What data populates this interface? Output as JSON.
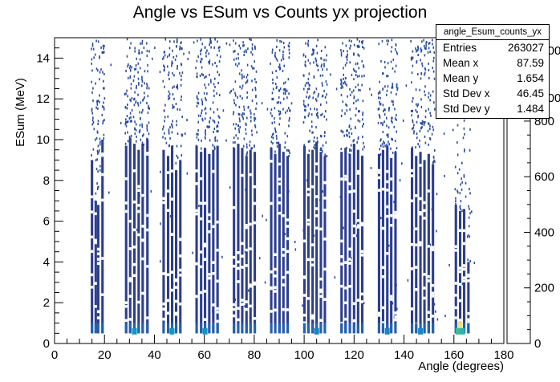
{
  "chart_data": {
    "type": "heatmap",
    "title": "Angle vs ESum vs Counts yx projection",
    "xlabel": "Angle (degrees)",
    "ylabel": "ESum (MeV)",
    "xlim": [
      0,
      180
    ],
    "ylim": [
      0,
      15
    ],
    "x_ticks": [
      "0",
      "20",
      "40",
      "60",
      "80",
      "100",
      "120",
      "140",
      "160",
      "180"
    ],
    "y_ticks": [
      "0",
      "2",
      "4",
      "6",
      "8",
      "10",
      "12",
      "14"
    ],
    "z_ticks": [
      "0",
      "200",
      "400",
      "600",
      "800",
      "1000",
      "1000"
    ],
    "z_range": [
      0,
      1100
    ],
    "palette": [
      "#2c3e8f",
      "#2a4ea0",
      "#2560b0",
      "#1f74bd",
      "#1686c4",
      "#0f97c5",
      "#0aa6c2",
      "#10b1b8",
      "#25b9a8",
      "#3ebd95",
      "#5cc082",
      "#7fc26d",
      "#a0c25c",
      "#bfbf52",
      "#d7bb4e",
      "#e8b84e"
    ],
    "bright_color": "#ede28a",
    "columns": [
      {
        "x": 15,
        "top": 9.0
      },
      {
        "x": 16.5,
        "top": 7.0
      },
      {
        "x": 17.5,
        "top": 6.8
      },
      {
        "x": 19.2,
        "top": 10.0
      },
      {
        "x": 28.7,
        "top": 9.7
      },
      {
        "x": 30.3,
        "top": 10.1
      },
      {
        "x": 32,
        "top": 9.8
      },
      {
        "x": 33.7,
        "top": 9.5
      },
      {
        "x": 35.3,
        "top": 9.8
      },
      {
        "x": 37.2,
        "top": 10.0
      },
      {
        "x": 43.7,
        "top": 9.5
      },
      {
        "x": 45.5,
        "top": 9.2
      },
      {
        "x": 47.1,
        "top": 9.7
      },
      {
        "x": 48.7,
        "top": 8.5
      },
      {
        "x": 50.4,
        "top": 9.0
      },
      {
        "x": 56.9,
        "top": 9.7
      },
      {
        "x": 58.7,
        "top": 9.4
      },
      {
        "x": 60.3,
        "top": 9.6
      },
      {
        "x": 62,
        "top": 9.3
      },
      {
        "x": 63.6,
        "top": 9.5
      },
      {
        "x": 65.3,
        "top": 9.7
      },
      {
        "x": 71.9,
        "top": 9.6
      },
      {
        "x": 73.6,
        "top": 9.8
      },
      {
        "x": 75.2,
        "top": 9.6
      },
      {
        "x": 76.9,
        "top": 9.2
      },
      {
        "x": 78.5,
        "top": 9.5
      },
      {
        "x": 80.2,
        "top": 9.4
      },
      {
        "x": 86.8,
        "top": 9.6
      },
      {
        "x": 88.4,
        "top": 9.3
      },
      {
        "x": 90.1,
        "top": 9.8
      },
      {
        "x": 91.7,
        "top": 9.4
      },
      {
        "x": 93.4,
        "top": 9.2
      },
      {
        "x": 100.1,
        "top": 9.7
      },
      {
        "x": 101.7,
        "top": 9.3
      },
      {
        "x": 103.4,
        "top": 9.5
      },
      {
        "x": 105,
        "top": 9.9
      },
      {
        "x": 106.7,
        "top": 9.4
      },
      {
        "x": 108.3,
        "top": 9.2
      },
      {
        "x": 115,
        "top": 9.4
      },
      {
        "x": 116.6,
        "top": 9.6
      },
      {
        "x": 118.3,
        "top": 9.3
      },
      {
        "x": 120,
        "top": 9.8
      },
      {
        "x": 121.6,
        "top": 9.5
      },
      {
        "x": 123.3,
        "top": 9.2
      },
      {
        "x": 130,
        "top": 9.3
      },
      {
        "x": 131.6,
        "top": 9.5
      },
      {
        "x": 133.3,
        "top": 9.7
      },
      {
        "x": 134.9,
        "top": 9.1
      },
      {
        "x": 136.6,
        "top": 9.4
      },
      {
        "x": 143.2,
        "top": 9.6
      },
      {
        "x": 144.9,
        "top": 9.2
      },
      {
        "x": 146.6,
        "top": 9.4
      },
      {
        "x": 148.2,
        "top": 9.0
      },
      {
        "x": 149.9,
        "top": 9.3
      },
      {
        "x": 151.6,
        "top": 8.8
      },
      {
        "x": 160.8,
        "top": 6.8
      },
      {
        "x": 162.5,
        "top": 6.5
      },
      {
        "x": 164.1,
        "top": 6.6
      },
      {
        "x": 165.8,
        "top": 4.0
      }
    ],
    "hot_spots": [
      {
        "x": 162.5,
        "y": 0.9,
        "level": 1.0
      },
      {
        "x": 161.6,
        "y": 0.6,
        "level": 0.6
      },
      {
        "x": 163.4,
        "y": 0.6,
        "level": 0.55
      },
      {
        "x": 32.0,
        "y": 0.6,
        "level": 0.35
      },
      {
        "x": 47.1,
        "y": 0.6,
        "level": 0.3
      },
      {
        "x": 60.3,
        "y": 0.6,
        "level": 0.3
      },
      {
        "x": 105.0,
        "y": 0.6,
        "level": 0.25
      },
      {
        "x": 133.3,
        "y": 0.6,
        "level": 0.25
      },
      {
        "x": 146.6,
        "y": 0.6,
        "level": 0.28
      }
    ],
    "stats": {
      "name": "angle_Esum_counts_yx",
      "entries_label": "Entries",
      "entries": "263027",
      "meanx_label": "Mean x",
      "meanx": "87.59",
      "meany_label": "Mean y",
      "meany": "1.654",
      "stdx_label": "Std Dev x",
      "stdx": "46.45",
      "stdy_label": "Std Dev y",
      "stdy": "1.484"
    }
  }
}
